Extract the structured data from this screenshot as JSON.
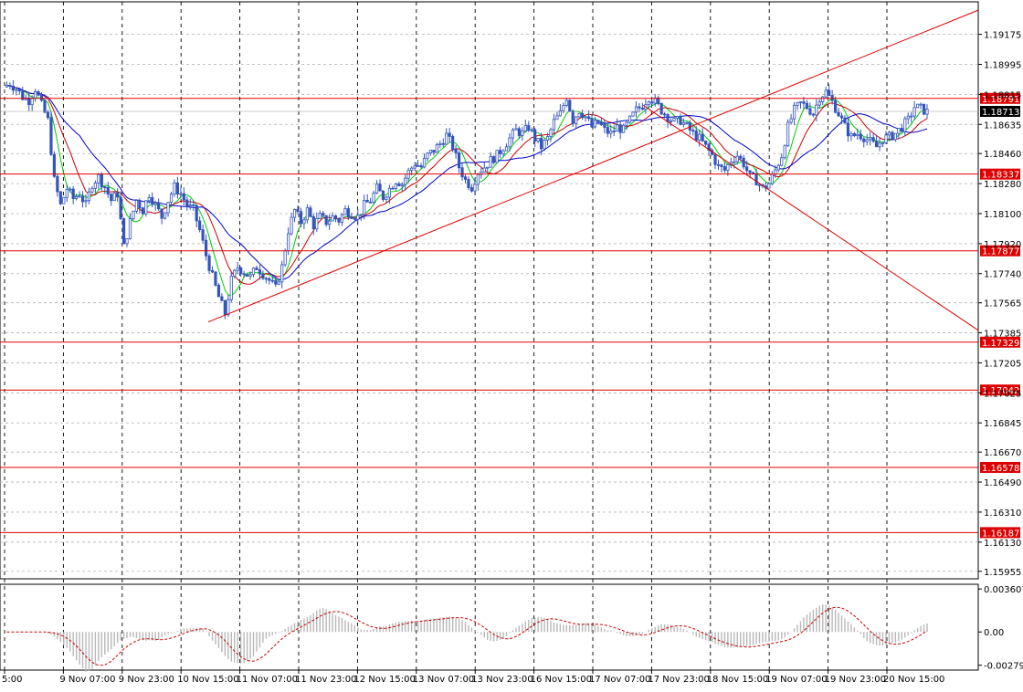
{
  "chart_data": [
    {
      "type": "candlestick",
      "symbol": "EURUSD",
      "timeframe": "H1",
      "colors": {
        "candle": "#3355bb",
        "ma_fast": "#00cc00",
        "ma_mid": "#cc0000",
        "ma_slow": "#0000cc",
        "level_line": "#dd0000",
        "trend_line": "#dd0000",
        "grid": "#b0b0b0",
        "axis_text": "#000000"
      },
      "ylim": [
        1.1591,
        1.1937
      ],
      "y_ticks": [
        "1.19175",
        "1.18995",
        "1.18815",
        "1.18635",
        "1.18460",
        "1.18280",
        "1.18100",
        "1.17920",
        "1.17740",
        "1.17565",
        "1.17385",
        "1.17205",
        "1.17025",
        "1.16845",
        "1.16670",
        "1.16490",
        "1.16310",
        "1.16130",
        "1.15955"
      ],
      "x_ticks": [
        "5:00",
        "9 Nov 07:00",
        "9 Nov 23:00",
        "10 Nov 15:00",
        "11 Nov 07:00",
        "11 Nov 23:00",
        "12 Nov 15:00",
        "13 Nov 07:00",
        "13 Nov 23:00",
        "16 Nov 15:00",
        "17 Nov 07:00",
        "17 Nov 23:00",
        "18 Nov 15:00",
        "19 Nov 07:00",
        "19 Nov 23:00",
        "20 Nov 15:00"
      ],
      "current_price": "1.18713",
      "levels": [
        {
          "label": "1.18791",
          "value": 1.18791
        },
        {
          "label": "1.18337",
          "value": 1.18337
        },
        {
          "label": "1.17877",
          "value": 1.17877
        },
        {
          "label": "1.17329",
          "value": 1.17329
        },
        {
          "label": "1.17042",
          "value": 1.17042
        },
        {
          "label": "1.16578",
          "value": 1.16578
        },
        {
          "label": "1.16187",
          "value": 1.16187
        }
      ],
      "trend_lines": [
        {
          "from": [
            11.2,
            1.1745
          ],
          "to": [
            53.5,
            1.1932
          ]
        },
        {
          "from": [
            35.0,
            1.1875
          ],
          "to": [
            53.5,
            1.174
          ]
        }
      ],
      "price_path": [
        1.1886,
        1.1888,
        1.1885,
        1.188,
        1.1878,
        1.1885,
        1.1875,
        1.1866,
        1.183,
        1.1815,
        1.1825,
        1.1819,
        1.1822,
        1.1815,
        1.1828,
        1.1832,
        1.1826,
        1.1818,
        1.1822,
        1.179,
        1.1805,
        1.1818,
        1.1812,
        1.1822,
        1.1815,
        1.1808,
        1.1818,
        1.1826,
        1.1822,
        1.1815,
        1.1812,
        1.18,
        1.1785,
        1.1772,
        1.176,
        1.175,
        1.177,
        1.1778,
        1.1775,
        1.1772,
        1.1778,
        1.1774,
        1.177,
        1.1765,
        1.1778,
        1.18,
        1.1812,
        1.1805,
        1.1812,
        1.1803,
        1.1808,
        1.1805,
        1.1808,
        1.1806,
        1.1812,
        1.181,
        1.1808,
        1.1815,
        1.1818,
        1.1825,
        1.182,
        1.1825,
        1.183,
        1.1828,
        1.1835,
        1.184,
        1.1838,
        1.1845,
        1.1848,
        1.1852,
        1.1857,
        1.185,
        1.1838,
        1.183,
        1.1826,
        1.1835,
        1.1838,
        1.1842,
        1.1845,
        1.185,
        1.1855,
        1.186,
        1.1858,
        1.1862,
        1.1855,
        1.185,
        1.1855,
        1.1865,
        1.187,
        1.188,
        1.1866,
        1.1872,
        1.1868,
        1.1862,
        1.1865,
        1.186,
        1.1858,
        1.1862,
        1.186,
        1.1866,
        1.1872,
        1.1875,
        1.188,
        1.1877,
        1.1872,
        1.1868,
        1.1865,
        1.1866,
        1.1862,
        1.1858,
        1.1855,
        1.185,
        1.1845,
        1.1838,
        1.1836,
        1.1842,
        1.1845,
        1.184,
        1.1832,
        1.183,
        1.1825,
        1.1828,
        1.1836,
        1.1845,
        1.1862,
        1.1872,
        1.1876,
        1.1874,
        1.187,
        1.188,
        1.1883,
        1.1877,
        1.187,
        1.1862,
        1.1856,
        1.1858,
        1.1856,
        1.1853,
        1.185,
        1.1855,
        1.1856,
        1.1858,
        1.1862,
        1.1866,
        1.1874,
        1.1873,
        1.1871
      ],
      "indicator": {
        "type": "macd-histogram",
        "y_ticks": [
          "0.003607",
          "0.00",
          "-0.002792"
        ],
        "ylim": [
          -0.0032,
          0.004
        ],
        "color_bars": "#b8b8b8",
        "color_signal": "#cc0000"
      }
    }
  ]
}
